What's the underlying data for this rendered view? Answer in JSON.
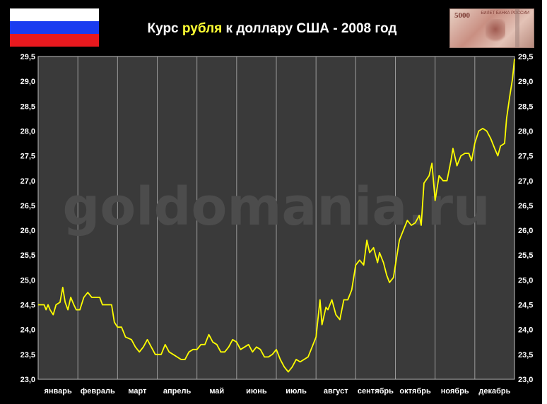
{
  "title": {
    "prefix": "Курс ",
    "highlight": "рубля",
    "suffix": " к доллару США - 2008 год"
  },
  "watermark": "goldomania.ru",
  "flag_colors": [
    "#ffffff",
    "#1a3cf0",
    "#e8191e"
  ],
  "banknote": {
    "number": "5000",
    "caption": "БИЛЕТ БАНКА РОССИИ",
    "icon": "banknote-5000-rub"
  },
  "colors": {
    "line": "#ffff00",
    "plot_bg": "#3a3a3a",
    "grid": "#9a9a9a",
    "axis_text": "#ffffff",
    "title_highlight": "#ffff33",
    "frame": "#000000"
  },
  "chart_data": {
    "type": "line",
    "title": "Курс рубля к доллару США - 2008 год",
    "ylim": [
      23.0,
      29.5
    ],
    "yticks": [
      "23,0",
      "23,5",
      "24,0",
      "24,5",
      "25,0",
      "25,5",
      "26,0",
      "26,5",
      "27,0",
      "27,5",
      "28,0",
      "28,5",
      "29,0",
      "29,5"
    ],
    "categories": [
      "январь",
      "февраль",
      "март",
      "апрель",
      "май",
      "июнь",
      "июль",
      "август",
      "сентябрь",
      "октябрь",
      "ноябрь",
      "декабрь"
    ],
    "grid": "vertical",
    "series": [
      {
        "values": [
          [
            0.0,
            24.5
          ],
          [
            0.15,
            24.5
          ],
          [
            0.2,
            24.4
          ],
          [
            0.25,
            24.5
          ],
          [
            0.3,
            24.4
          ],
          [
            0.38,
            24.3
          ],
          [
            0.45,
            24.5
          ],
          [
            0.55,
            24.55
          ],
          [
            0.62,
            24.85
          ],
          [
            0.68,
            24.55
          ],
          [
            0.75,
            24.4
          ],
          [
            0.82,
            24.65
          ],
          [
            0.9,
            24.5
          ],
          [
            0.96,
            24.4
          ],
          [
            1.05,
            24.4
          ],
          [
            1.15,
            24.65
          ],
          [
            1.25,
            24.75
          ],
          [
            1.35,
            24.65
          ],
          [
            1.45,
            24.65
          ],
          [
            1.55,
            24.65
          ],
          [
            1.62,
            24.5
          ],
          [
            1.72,
            24.5
          ],
          [
            1.85,
            24.5
          ],
          [
            1.92,
            24.15
          ],
          [
            2.0,
            24.05
          ],
          [
            2.1,
            24.05
          ],
          [
            2.2,
            23.85
          ],
          [
            2.35,
            23.8
          ],
          [
            2.45,
            23.65
          ],
          [
            2.55,
            23.55
          ],
          [
            2.65,
            23.65
          ],
          [
            2.75,
            23.8
          ],
          [
            2.85,
            23.65
          ],
          [
            2.95,
            23.5
          ],
          [
            3.1,
            23.5
          ],
          [
            3.2,
            23.7
          ],
          [
            3.3,
            23.55
          ],
          [
            3.4,
            23.5
          ],
          [
            3.5,
            23.45
          ],
          [
            3.6,
            23.4
          ],
          [
            3.7,
            23.4
          ],
          [
            3.8,
            23.55
          ],
          [
            3.9,
            23.6
          ],
          [
            4.0,
            23.6
          ],
          [
            4.1,
            23.7
          ],
          [
            4.2,
            23.7
          ],
          [
            4.3,
            23.9
          ],
          [
            4.4,
            23.75
          ],
          [
            4.5,
            23.7
          ],
          [
            4.6,
            23.55
          ],
          [
            4.7,
            23.55
          ],
          [
            4.8,
            23.65
          ],
          [
            4.9,
            23.8
          ],
          [
            5.0,
            23.75
          ],
          [
            5.1,
            23.6
          ],
          [
            5.2,
            23.65
          ],
          [
            5.3,
            23.7
          ],
          [
            5.4,
            23.55
          ],
          [
            5.5,
            23.65
          ],
          [
            5.6,
            23.6
          ],
          [
            5.7,
            23.45
          ],
          [
            5.8,
            23.45
          ],
          [
            5.9,
            23.5
          ],
          [
            6.0,
            23.6
          ],
          [
            6.1,
            23.4
          ],
          [
            6.2,
            23.25
          ],
          [
            6.3,
            23.15
          ],
          [
            6.4,
            23.25
          ],
          [
            6.5,
            23.4
          ],
          [
            6.6,
            23.35
          ],
          [
            6.7,
            23.4
          ],
          [
            6.8,
            23.45
          ],
          [
            6.9,
            23.65
          ],
          [
            7.0,
            23.85
          ],
          [
            7.1,
            24.6
          ],
          [
            7.15,
            24.1
          ],
          [
            7.25,
            24.45
          ],
          [
            7.3,
            24.4
          ],
          [
            7.4,
            24.6
          ],
          [
            7.5,
            24.3
          ],
          [
            7.6,
            24.2
          ],
          [
            7.7,
            24.6
          ],
          [
            7.8,
            24.6
          ],
          [
            7.9,
            24.8
          ],
          [
            8.0,
            25.3
          ],
          [
            8.1,
            25.4
          ],
          [
            8.2,
            25.3
          ],
          [
            8.28,
            25.8
          ],
          [
            8.35,
            25.55
          ],
          [
            8.45,
            25.65
          ],
          [
            8.55,
            25.35
          ],
          [
            8.6,
            25.55
          ],
          [
            8.7,
            25.35
          ],
          [
            8.78,
            25.1
          ],
          [
            8.85,
            24.95
          ],
          [
            8.95,
            25.05
          ],
          [
            9.0,
            25.3
          ],
          [
            9.1,
            25.8
          ],
          [
            9.2,
            26.0
          ],
          [
            9.3,
            26.2
          ],
          [
            9.4,
            26.1
          ],
          [
            9.5,
            26.15
          ],
          [
            9.6,
            26.3
          ],
          [
            9.65,
            26.1
          ],
          [
            9.72,
            26.95
          ],
          [
            9.85,
            27.1
          ],
          [
            9.92,
            27.35
          ],
          [
            10.0,
            26.6
          ],
          [
            10.1,
            27.1
          ],
          [
            10.2,
            27.0
          ],
          [
            10.3,
            27.0
          ],
          [
            10.4,
            27.4
          ],
          [
            10.45,
            27.65
          ],
          [
            10.55,
            27.3
          ],
          [
            10.65,
            27.5
          ],
          [
            10.75,
            27.55
          ],
          [
            10.85,
            27.55
          ],
          [
            10.92,
            27.4
          ],
          [
            11.0,
            27.75
          ],
          [
            11.1,
            28.0
          ],
          [
            11.2,
            28.05
          ],
          [
            11.3,
            28.0
          ],
          [
            11.4,
            27.85
          ],
          [
            11.5,
            27.65
          ],
          [
            11.58,
            27.5
          ],
          [
            11.65,
            27.7
          ],
          [
            11.75,
            27.75
          ],
          [
            11.8,
            28.25
          ],
          [
            11.88,
            28.7
          ],
          [
            11.95,
            29.05
          ],
          [
            12.0,
            29.45
          ]
        ]
      }
    ]
  }
}
